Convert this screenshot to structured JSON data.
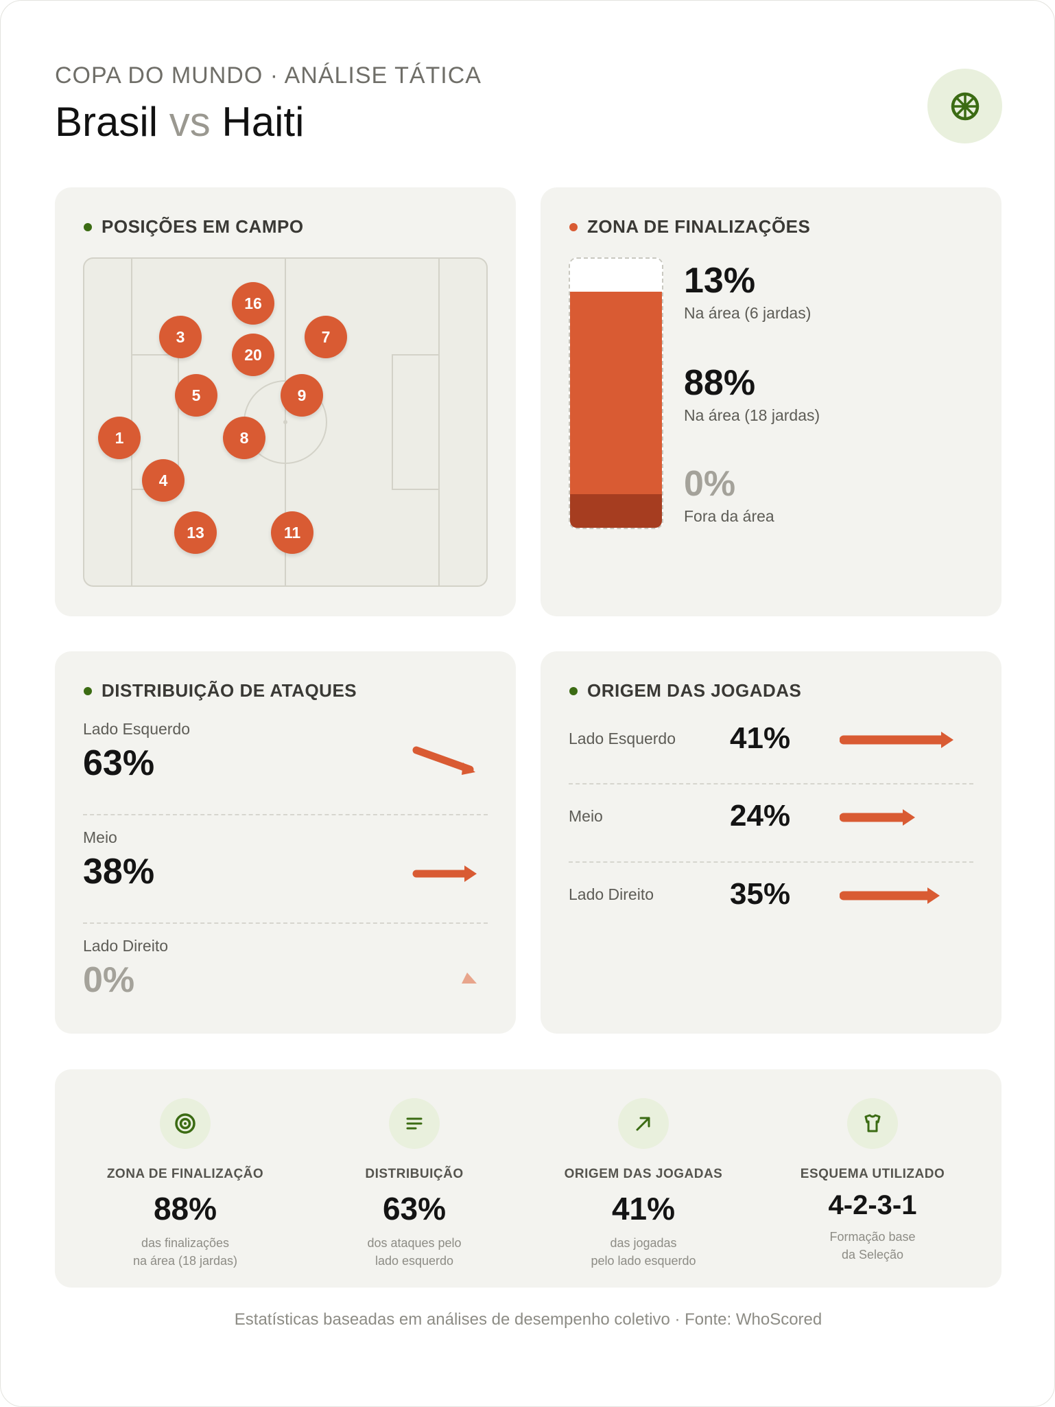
{
  "header": {
    "kicker": "COPA DO MUNDO · ANÁLISE TÁTICA",
    "team_home": "Brasil",
    "vs": "vs",
    "team_away": "Haiti",
    "logo_icon": "soccer-ball-icon"
  },
  "colors": {
    "accent_orange": "#d95b33",
    "accent_dark_orange": "#a63d20",
    "accent_green": "#3b6b13",
    "card_bg": "#f3f3ef"
  },
  "positions": {
    "title": "POSIÇÕES EM CAMPO",
    "players": [
      "16",
      "3",
      "7",
      "20",
      "5",
      "9",
      "1",
      "8",
      "4",
      "13",
      "11"
    ]
  },
  "shot_zone": {
    "title": "ZONA DE FINALIZAÇÕES",
    "items": [
      {
        "value": "13%",
        "label": "Na área (6 jardas)"
      },
      {
        "value": "88%",
        "label": "Na área (18 jardas)"
      },
      {
        "value": "0%",
        "label": "Fora da área"
      }
    ]
  },
  "attack_distribution": {
    "title": "DISTRIBUIÇÃO DE ATAQUES",
    "items": [
      {
        "label": "Lado Esquerdo",
        "value": "63%"
      },
      {
        "label": "Meio",
        "value": "38%"
      },
      {
        "label": "Lado Direito",
        "value": "0%"
      }
    ]
  },
  "play_origin": {
    "title": "ORIGEM DAS JOGADAS",
    "items": [
      {
        "label": "Lado Esquerdo",
        "value": "41%"
      },
      {
        "label": "Meio",
        "value": "24%"
      },
      {
        "label": "Lado Direito",
        "value": "35%"
      }
    ]
  },
  "summary": [
    {
      "icon": "target-icon",
      "title": "ZONA DE FINALIZAÇÃO",
      "value": "88%",
      "sub": "das finalizações\nna área (18 jardas)"
    },
    {
      "icon": "list-icon",
      "title": "DISTRIBUIÇÃO",
      "value": "63%",
      "sub": "dos ataques pelo\nlado esquerdo"
    },
    {
      "icon": "arrow-up-right-icon",
      "title": "ORIGEM DAS JOGADAS",
      "value": "41%",
      "sub": "das jogadas\npelo lado esquerdo"
    },
    {
      "icon": "shirt-icon",
      "title": "ESQUEMA UTILIZADO",
      "value": "4-2-3-1",
      "sub": "Formação base\nda Seleção"
    }
  ],
  "footer": "Estatísticas baseadas em análises de desempenho coletivo · Fonte: WhoScored"
}
